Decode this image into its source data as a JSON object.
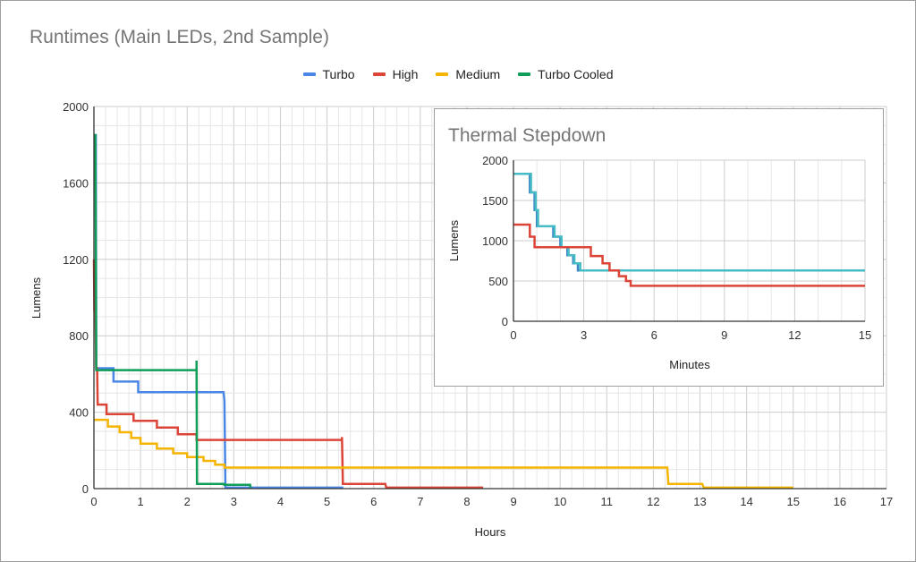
{
  "chart_data": [
    {
      "type": "line",
      "title": "Runtimes (Main LEDs, 2nd Sample)",
      "xlabel": "Hours",
      "ylabel": "Lumens",
      "xlim": [
        0,
        17
      ],
      "ylim": [
        0,
        2000
      ],
      "x_ticks": [
        "0",
        "1",
        "2",
        "3",
        "4",
        "5",
        "6",
        "7",
        "8",
        "9",
        "10",
        "11",
        "12",
        "13",
        "14",
        "15",
        "16",
        "17"
      ],
      "y_ticks": [
        "0",
        "400",
        "800",
        "1200",
        "1600",
        "2000"
      ],
      "grid": true,
      "legend_position": "top",
      "line_style": "stepped",
      "series": [
        {
          "name": "Turbo",
          "color": "#4a86e8",
          "points": [
            [
              0,
              1850
            ],
            [
              0.04,
              1850
            ],
            [
              0.05,
              630
            ],
            [
              0.42,
              630
            ],
            [
              0.42,
              560
            ],
            [
              0.95,
              560
            ],
            [
              0.95,
              505
            ],
            [
              2.78,
              505
            ],
            [
              2.8,
              460
            ],
            [
              2.82,
              5
            ],
            [
              5.35,
              5
            ]
          ]
        },
        {
          "name": "High",
          "color": "#db4437",
          "points": [
            [
              0,
              1200
            ],
            [
              0.01,
              930
            ],
            [
              0.03,
              930
            ],
            [
              0.05,
              630
            ],
            [
              0.07,
              630
            ],
            [
              0.08,
              440
            ],
            [
              0.27,
              440
            ],
            [
              0.27,
              390
            ],
            [
              0.85,
              390
            ],
            [
              0.85,
              355
            ],
            [
              1.35,
              355
            ],
            [
              1.35,
              320
            ],
            [
              1.8,
              320
            ],
            [
              1.8,
              285
            ],
            [
              2.2,
              285
            ],
            [
              2.2,
              255
            ],
            [
              5.32,
              255
            ],
            [
              5.32,
              270
            ],
            [
              5.34,
              25
            ],
            [
              6.25,
              25
            ],
            [
              6.27,
              5
            ],
            [
              8.35,
              5
            ]
          ]
        },
        {
          "name": "Medium",
          "color": "#f4b400",
          "points": [
            [
              0,
              360
            ],
            [
              0.3,
              360
            ],
            [
              0.3,
              325
            ],
            [
              0.55,
              325
            ],
            [
              0.55,
              295
            ],
            [
              0.8,
              295
            ],
            [
              0.8,
              265
            ],
            [
              1.0,
              265
            ],
            [
              1.0,
              235
            ],
            [
              1.35,
              235
            ],
            [
              1.35,
              210
            ],
            [
              1.7,
              210
            ],
            [
              1.7,
              185
            ],
            [
              2.0,
              185
            ],
            [
              2.0,
              165
            ],
            [
              2.35,
              165
            ],
            [
              2.35,
              145
            ],
            [
              2.6,
              145
            ],
            [
              2.6,
              125
            ],
            [
              2.8,
              125
            ],
            [
              2.8,
              110
            ],
            [
              12.3,
              110
            ],
            [
              12.32,
              25
            ],
            [
              13.05,
              25
            ],
            [
              13.08,
              5
            ],
            [
              15.0,
              5
            ]
          ]
        },
        {
          "name": "Turbo Cooled",
          "color": "#0f9d58",
          "points": [
            [
              0,
              1850
            ],
            [
              0.03,
              1850
            ],
            [
              0.05,
              620
            ],
            [
              2.2,
              620
            ],
            [
              2.2,
              670
            ],
            [
              2.21,
              25
            ],
            [
              2.8,
              25
            ],
            [
              2.8,
              20
            ],
            [
              3.35,
              20
            ],
            [
              3.36,
              5
            ]
          ]
        }
      ]
    },
    {
      "type": "line",
      "title": "Thermal Stepdown",
      "xlabel": "Minutes",
      "ylabel": "Lumens",
      "xlim": [
        0,
        15
      ],
      "ylim": [
        0,
        2000
      ],
      "x_ticks": [
        "0",
        "3",
        "6",
        "9",
        "12",
        "15"
      ],
      "y_ticks": [
        "0",
        "500",
        "1000",
        "1500",
        "2000"
      ],
      "grid": true,
      "line_style": "stepped",
      "series": [
        {
          "name": "Turbo",
          "color": "#3d85c6",
          "points": [
            [
              0,
              1830
            ],
            [
              0.7,
              1830
            ],
            [
              0.7,
              1600
            ],
            [
              0.9,
              1600
            ],
            [
              0.9,
              1380
            ],
            [
              1.0,
              1380
            ],
            [
              1.0,
              1180
            ],
            [
              1.7,
              1180
            ],
            [
              1.7,
              1050
            ],
            [
              2.0,
              1050
            ],
            [
              2.0,
              920
            ],
            [
              2.3,
              920
            ],
            [
              2.3,
              820
            ],
            [
              2.55,
              820
            ],
            [
              2.55,
              720
            ],
            [
              2.75,
              720
            ],
            [
              2.75,
              630
            ],
            [
              15,
              630
            ]
          ]
        },
        {
          "name": "Turbo Cooled",
          "color": "#46bdc6",
          "points": [
            [
              0,
              1830
            ],
            [
              0.75,
              1830
            ],
            [
              0.75,
              1600
            ],
            [
              0.95,
              1600
            ],
            [
              0.95,
              1380
            ],
            [
              1.05,
              1380
            ],
            [
              1.05,
              1180
            ],
            [
              1.75,
              1180
            ],
            [
              1.75,
              1050
            ],
            [
              2.05,
              1050
            ],
            [
              2.05,
              920
            ],
            [
              2.35,
              920
            ],
            [
              2.35,
              820
            ],
            [
              2.6,
              820
            ],
            [
              2.6,
              720
            ],
            [
              2.85,
              720
            ],
            [
              2.85,
              630
            ],
            [
              15,
              630
            ]
          ]
        },
        {
          "name": "High",
          "color": "#db4437",
          "points": [
            [
              0,
              1200
            ],
            [
              0.7,
              1200
            ],
            [
              0.7,
              1050
            ],
            [
              0.9,
              1050
            ],
            [
              0.9,
              920
            ],
            [
              3.3,
              920
            ],
            [
              3.3,
              810
            ],
            [
              3.8,
              810
            ],
            [
              3.8,
              720
            ],
            [
              4.1,
              720
            ],
            [
              4.1,
              630
            ],
            [
              4.5,
              630
            ],
            [
              4.5,
              560
            ],
            [
              4.8,
              560
            ],
            [
              4.8,
              500
            ],
            [
              5.0,
              500
            ],
            [
              5.0,
              440
            ],
            [
              15,
              440
            ]
          ]
        }
      ]
    }
  ]
}
